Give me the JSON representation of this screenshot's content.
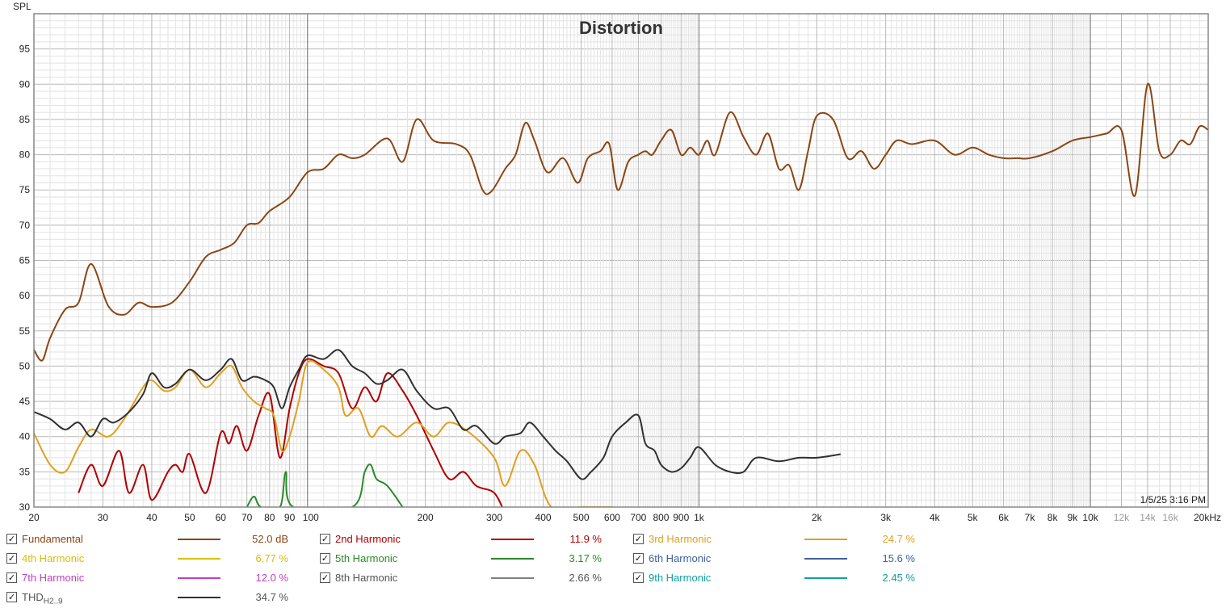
{
  "chart_data": {
    "type": "line",
    "title": "Distortion",
    "ylabel": "SPL",
    "xscale": "log",
    "xlim": [
      20,
      20000
    ],
    "ylim": [
      30,
      100
    ],
    "y_ticks": [
      30,
      35,
      40,
      45,
      50,
      55,
      60,
      65,
      70,
      75,
      80,
      85,
      90,
      95
    ],
    "x_ticks": [
      {
        "value": 20,
        "label": "20"
      },
      {
        "value": 30,
        "label": "30"
      },
      {
        "value": 40,
        "label": "40"
      },
      {
        "value": 50,
        "label": "50"
      },
      {
        "value": 60,
        "label": "60"
      },
      {
        "value": 70,
        "label": "70"
      },
      {
        "value": 80,
        "label": "80"
      },
      {
        "value": 90,
        "label": "90"
      },
      {
        "value": 100,
        "label": "100"
      },
      {
        "value": 200,
        "label": "200"
      },
      {
        "value": 300,
        "label": "300"
      },
      {
        "value": 400,
        "label": "400"
      },
      {
        "value": 500,
        "label": "500"
      },
      {
        "value": 600,
        "label": "600"
      },
      {
        "value": 700,
        "label": "700"
      },
      {
        "value": 800,
        "label": "800"
      },
      {
        "value": 900,
        "label": "900"
      },
      {
        "value": 1000,
        "label": "1k"
      },
      {
        "value": 2000,
        "label": "2k"
      },
      {
        "value": 3000,
        "label": "3k"
      },
      {
        "value": 4000,
        "label": "4k"
      },
      {
        "value": 5000,
        "label": "5k"
      },
      {
        "value": 6000,
        "label": "6k"
      },
      {
        "value": 7000,
        "label": "7k"
      },
      {
        "value": 8000,
        "label": "8k"
      },
      {
        "value": 9000,
        "label": "9k"
      },
      {
        "value": 10000,
        "label": "10k"
      },
      {
        "value": 12000,
        "label": "12k",
        "dim": true
      },
      {
        "value": 14000,
        "label": "14k",
        "dim": true
      },
      {
        "value": 16000,
        "label": "16k",
        "dim": true
      },
      {
        "value": 20000,
        "label": "20kHz"
      }
    ],
    "grid": true,
    "timestamp": "1/5/25 3:16 PM",
    "series": [
      {
        "name": "Fundamental",
        "color": "#8b4513",
        "value_label": "52.0 dB",
        "points": [
          [
            20,
            52.3
          ],
          [
            21,
            50.8
          ],
          [
            22,
            54
          ],
          [
            24,
            58
          ],
          [
            26,
            59
          ],
          [
            28,
            64.5
          ],
          [
            31,
            58.5
          ],
          [
            34,
            57.3
          ],
          [
            37,
            59
          ],
          [
            40,
            58.4
          ],
          [
            45,
            59
          ],
          [
            50,
            62
          ],
          [
            55,
            65.5
          ],
          [
            60,
            66.5
          ],
          [
            65,
            67.5
          ],
          [
            70,
            70
          ],
          [
            75,
            70.3
          ],
          [
            80,
            72
          ],
          [
            90,
            74
          ],
          [
            100,
            77.5
          ],
          [
            110,
            78
          ],
          [
            120,
            80
          ],
          [
            130,
            79.5
          ],
          [
            140,
            80
          ],
          [
            160,
            82.3
          ],
          [
            175,
            79
          ],
          [
            190,
            85
          ],
          [
            210,
            82
          ],
          [
            240,
            81.5
          ],
          [
            260,
            80
          ],
          [
            280,
            75
          ],
          [
            295,
            74.8
          ],
          [
            320,
            78
          ],
          [
            340,
            80
          ],
          [
            360,
            84.5
          ],
          [
            380,
            82
          ],
          [
            410,
            77.5
          ],
          [
            450,
            79.5
          ],
          [
            490,
            76
          ],
          [
            520,
            79.5
          ],
          [
            560,
            80.5
          ],
          [
            590,
            81.5
          ],
          [
            620,
            75
          ],
          [
            660,
            79
          ],
          [
            700,
            80
          ],
          [
            730,
            80.5
          ],
          [
            760,
            80
          ],
          [
            800,
            82
          ],
          [
            850,
            83.5
          ],
          [
            900,
            80
          ],
          [
            950,
            81
          ],
          [
            1000,
            80
          ],
          [
            1050,
            82
          ],
          [
            1100,
            80
          ],
          [
            1200,
            86
          ],
          [
            1300,
            82.5
          ],
          [
            1400,
            80
          ],
          [
            1500,
            83
          ],
          [
            1600,
            78
          ],
          [
            1700,
            78.5
          ],
          [
            1800,
            75
          ],
          [
            1900,
            80.5
          ],
          [
            2000,
            85.5
          ],
          [
            2200,
            85
          ],
          [
            2400,
            79.5
          ],
          [
            2600,
            80.5
          ],
          [
            2800,
            78
          ],
          [
            3000,
            80
          ],
          [
            3200,
            82
          ],
          [
            3500,
            81.5
          ],
          [
            4000,
            82
          ],
          [
            4500,
            80
          ],
          [
            5000,
            81
          ],
          [
            5500,
            80
          ],
          [
            6000,
            79.5
          ],
          [
            6500,
            79.5
          ],
          [
            7000,
            79.5
          ],
          [
            8000,
            80.5
          ],
          [
            9000,
            82
          ],
          [
            10000,
            82.5
          ],
          [
            11000,
            83
          ],
          [
            12000,
            83.5
          ],
          [
            13000,
            74.2
          ],
          [
            14000,
            90
          ],
          [
            15000,
            80.5
          ],
          [
            16000,
            80
          ],
          [
            17000,
            82
          ],
          [
            18000,
            81.5
          ],
          [
            19000,
            84
          ],
          [
            20000,
            83.5
          ]
        ]
      },
      {
        "name": "2nd Harmonic",
        "color": "#b00000",
        "value_label": "11.9 %",
        "points": [
          [
            26,
            32
          ],
          [
            28,
            36
          ],
          [
            30,
            33
          ],
          [
            33,
            38
          ],
          [
            35,
            32
          ],
          [
            38,
            36
          ],
          [
            40,
            31
          ],
          [
            44,
            35
          ],
          [
            46,
            36
          ],
          [
            48,
            35
          ],
          [
            50,
            37.5
          ],
          [
            55,
            32
          ],
          [
            60,
            40.5
          ],
          [
            63,
            39
          ],
          [
            66,
            41.5
          ],
          [
            70,
            38
          ],
          [
            75,
            43
          ],
          [
            80,
            46
          ],
          [
            85,
            37
          ],
          [
            90,
            44
          ],
          [
            95,
            49
          ],
          [
            100,
            51
          ],
          [
            110,
            50
          ],
          [
            120,
            49
          ],
          [
            130,
            44
          ],
          [
            140,
            47
          ],
          [
            150,
            45
          ],
          [
            160,
            49
          ],
          [
            175,
            46.5
          ],
          [
            190,
            43
          ],
          [
            210,
            38
          ],
          [
            230,
            34
          ],
          [
            250,
            35
          ],
          [
            270,
            33
          ],
          [
            300,
            32
          ],
          [
            320,
            29
          ]
        ]
      },
      {
        "name": "3rd Harmonic",
        "color": "#e0a020",
        "value_label": "24.7 %",
        "points": [
          [
            20,
            40.5
          ],
          [
            22,
            36
          ],
          [
            24,
            35
          ],
          [
            26,
            38.5
          ],
          [
            28,
            41
          ],
          [
            31,
            40
          ],
          [
            34,
            42.5
          ],
          [
            38,
            47
          ],
          [
            40,
            48
          ],
          [
            43,
            46.5
          ],
          [
            46,
            47
          ],
          [
            50,
            49.5
          ],
          [
            55,
            47
          ],
          [
            60,
            49
          ],
          [
            64,
            50
          ],
          [
            68,
            47
          ],
          [
            73,
            45
          ],
          [
            78,
            44
          ],
          [
            82,
            43
          ],
          [
            86,
            38
          ],
          [
            90,
            40
          ],
          [
            95,
            45
          ],
          [
            100,
            50.5
          ],
          [
            110,
            49.5
          ],
          [
            120,
            47
          ],
          [
            125,
            43
          ],
          [
            135,
            44
          ],
          [
            145,
            40
          ],
          [
            155,
            41.5
          ],
          [
            170,
            40
          ],
          [
            190,
            42
          ],
          [
            210,
            40
          ],
          [
            230,
            42
          ],
          [
            260,
            40.5
          ],
          [
            300,
            37
          ],
          [
            320,
            33
          ],
          [
            350,
            38
          ],
          [
            380,
            36
          ],
          [
            420,
            30
          ],
          [
            500,
            30
          ],
          [
            600,
            30
          ]
        ]
      },
      {
        "name": "4th Harmonic",
        "color": "#d8c000",
        "value_label": "6.77 %",
        "points": []
      },
      {
        "name": "5th Harmonic",
        "color": "#2a8a2a",
        "value_label": "3.17 %",
        "points": [
          [
            70,
            30
          ],
          [
            73,
            31.5
          ],
          [
            76,
            30
          ],
          [
            85,
            30
          ],
          [
            88,
            35
          ],
          [
            92,
            30
          ],
          [
            130,
            30
          ],
          [
            140,
            35
          ],
          [
            145,
            36
          ],
          [
            150,
            34
          ],
          [
            160,
            33
          ],
          [
            175,
            30
          ]
        ]
      },
      {
        "name": "6th Harmonic",
        "color": "#4060a0",
        "value_label": "15.6 %",
        "points": []
      },
      {
        "name": "7th Harmonic",
        "color": "#c040c0",
        "value_label": "12.0 %",
        "points": []
      },
      {
        "name": "8th Harmonic",
        "color": "#808080",
        "value_label": "2.66 %",
        "points": []
      },
      {
        "name": "9th Harmonic",
        "color": "#10a0a0",
        "value_label": "2.45 %",
        "points": []
      },
      {
        "name": "THD",
        "name_sub": "H2..9",
        "color": "#303030",
        "value_label": "34.7 %",
        "points": [
          [
            20,
            43.5
          ],
          [
            22,
            42.5
          ],
          [
            24,
            41
          ],
          [
            26,
            42
          ],
          [
            28,
            40
          ],
          [
            30,
            42.5
          ],
          [
            32,
            42
          ],
          [
            35,
            43.5
          ],
          [
            38,
            46
          ],
          [
            40,
            49
          ],
          [
            43,
            47
          ],
          [
            46,
            47.5
          ],
          [
            50,
            49.5
          ],
          [
            55,
            48
          ],
          [
            60,
            49.5
          ],
          [
            64,
            51
          ],
          [
            68,
            48
          ],
          [
            73,
            48.5
          ],
          [
            78,
            48
          ],
          [
            82,
            47
          ],
          [
            86,
            44
          ],
          [
            90,
            47
          ],
          [
            95,
            49.5
          ],
          [
            100,
            51.5
          ],
          [
            110,
            51
          ],
          [
            120,
            52.3
          ],
          [
            130,
            50
          ],
          [
            140,
            49
          ],
          [
            150,
            47.5
          ],
          [
            160,
            48
          ],
          [
            175,
            49.5
          ],
          [
            190,
            46.5
          ],
          [
            210,
            44
          ],
          [
            230,
            44
          ],
          [
            250,
            41
          ],
          [
            270,
            41.5
          ],
          [
            300,
            39
          ],
          [
            320,
            40
          ],
          [
            350,
            40.5
          ],
          [
            370,
            42
          ],
          [
            400,
            40
          ],
          [
            430,
            38
          ],
          [
            460,
            36.5
          ],
          [
            500,
            34
          ],
          [
            530,
            35
          ],
          [
            570,
            37
          ],
          [
            600,
            40
          ],
          [
            650,
            42
          ],
          [
            700,
            43
          ],
          [
            730,
            39
          ],
          [
            770,
            38
          ],
          [
            800,
            36
          ],
          [
            850,
            35
          ],
          [
            900,
            35.5
          ],
          [
            950,
            37
          ],
          [
            1000,
            38.5
          ],
          [
            1100,
            36
          ],
          [
            1200,
            35
          ],
          [
            1300,
            35
          ],
          [
            1400,
            37
          ],
          [
            1600,
            36.5
          ],
          [
            1800,
            37
          ],
          [
            2000,
            37
          ],
          [
            2300,
            37.5
          ]
        ]
      }
    ]
  }
}
